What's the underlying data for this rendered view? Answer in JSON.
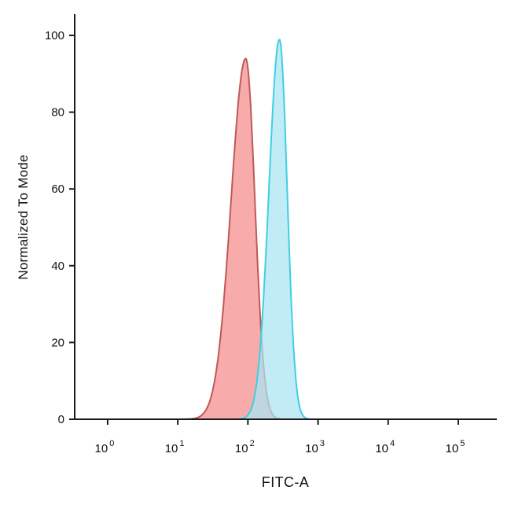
{
  "chart_data": {
    "type": "area",
    "chart_kind": "flow-cytometry-histogram-overlay",
    "title": "",
    "xlabel": "FITC-A",
    "ylabel": "Normalized To Mode",
    "x_scale": "log10",
    "x_tick_base": "10",
    "x_tick_exponents": [
      "0",
      "1",
      "2",
      "3",
      "4",
      "5"
    ],
    "x_ticks_log": [
      0,
      1,
      2,
      3,
      4,
      5
    ],
    "xlim_log": [
      -0.47,
      5.55
    ],
    "y_ticks": [
      0,
      20,
      40,
      60,
      80,
      100
    ],
    "ylim": [
      0,
      100
    ],
    "grid": false,
    "legend": "none",
    "axis_color": "#1a1a1a",
    "series": [
      {
        "name": "red-control-peak",
        "peak_log_x": 1.97,
        "peak_x": 93,
        "peak_y": 94,
        "sigma_log_left": 0.21,
        "sigma_log_right": 0.13,
        "stroke": "#bf5a55",
        "fill": "#f59393",
        "fill_opacity": 0.78,
        "stroke_width": 2
      },
      {
        "name": "cyan-stained-peak",
        "peak_log_x": 2.45,
        "peak_x": 282,
        "peak_y": 99,
        "sigma_log_left": 0.15,
        "sigma_log_right": 0.11,
        "stroke": "#3ecfe3",
        "fill": "#a9e5f2",
        "fill_opacity": 0.72,
        "stroke_width": 2
      }
    ]
  }
}
